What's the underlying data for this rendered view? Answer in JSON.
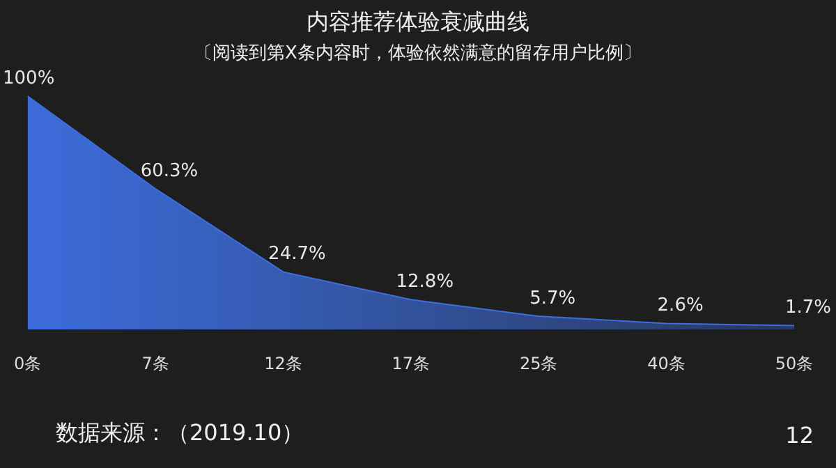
{
  "chart_data": {
    "type": "area",
    "title": "内容推荐体验衰减曲线",
    "subtitle": "〔阅读到第X条内容时，体验依然满意的留存用户比例〕",
    "categories": [
      "0条",
      "7条",
      "12条",
      "17条",
      "25条",
      "40条",
      "50条"
    ],
    "values": [
      100,
      60.3,
      24.7,
      12.8,
      5.7,
      2.6,
      1.7
    ],
    "value_labels": [
      "100%",
      "60.3%",
      "24.7%",
      "12.8%",
      "5.7%",
      "2.6%",
      "1.7%"
    ],
    "color": "#3d6ee0",
    "grid": false,
    "tick_labels": "x",
    "annotations": [
      "数据来源：（2019.10）",
      "12"
    ]
  }
}
